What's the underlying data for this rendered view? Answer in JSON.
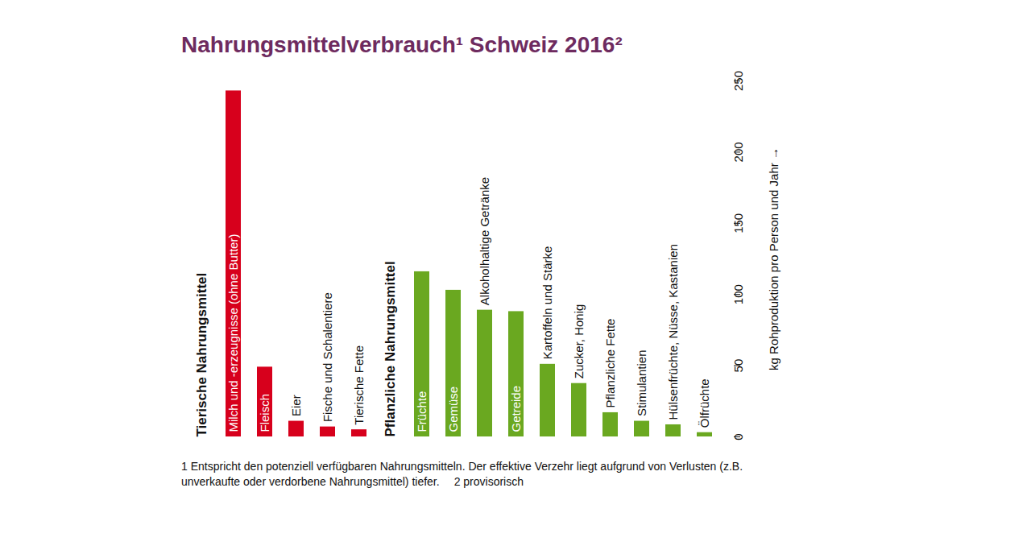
{
  "chart_data": {
    "type": "bar",
    "title": "Nahrungsmittelverbrauch¹ Schweiz 2016²",
    "categories": [
      "Milch und -erzeugnisse (ohne Butter)",
      "Fleisch",
      "Eier",
      "Fische und Schalentiere",
      "Tierische Fette",
      "Früchte",
      "Gemüse",
      "Alkoholhaltige Getränke",
      "Getreide",
      "Kartoffeln und Stärke",
      "Zucker, Honig",
      "Pflanzliche Fette",
      "Stimulantien",
      "Hülsenfrüchte, Nüsse, Kastanien",
      "Ölfrüchte"
    ],
    "series": [
      {
        "name": "Tierische Nahrungsmittel",
        "color": "#d7001c",
        "values": [
          243,
          49,
          11,
          7,
          5,
          null,
          null,
          null,
          null,
          null,
          null,
          null,
          null,
          null,
          null
        ]
      },
      {
        "name": "Pflanzliche Nahrungsmittel",
        "color": "#6aa820",
        "values": [
          null,
          null,
          null,
          null,
          null,
          116,
          103,
          89,
          88,
          51,
          37.5,
          17,
          11,
          8.5,
          3
        ]
      }
    ],
    "ylabel": "kg Rohproduktion pro Person und Jahr",
    "ylim": [
      0,
      250
    ],
    "yticks": [
      0,
      50,
      100,
      150,
      200,
      250
    ],
    "grid": false,
    "notes": [
      "1  Entspricht den potenziell verfügbaren Nahrungsmitteln. Der effektive Verzehr liegt aufgrund von Verlusten (z.B. unverkaufte oder verdorbene Nahrungsmittel) tiefer.",
      "2 provisorisch"
    ]
  }
}
